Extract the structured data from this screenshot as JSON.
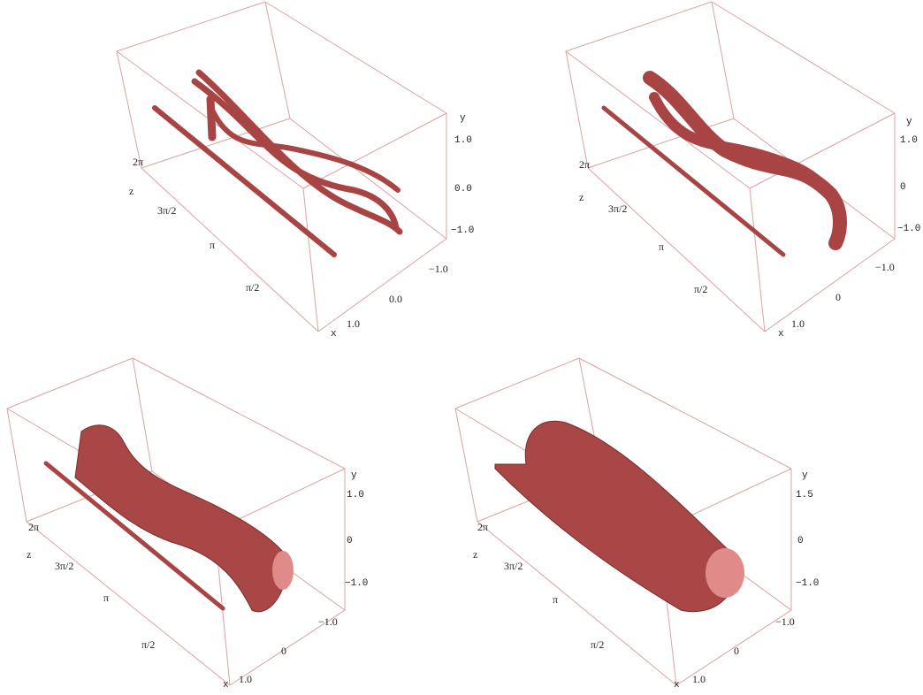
{
  "panels": [
    {
      "y_axis": {
        "label": "y",
        "ticks": [
          "1.0",
          "0.0",
          "−1.0"
        ]
      },
      "z_axis": {
        "label": "z",
        "ticks": [
          "2π",
          "3π/2",
          "π",
          "π/2"
        ]
      },
      "x_axis": {
        "label": "x",
        "ticks": [
          "−1.0",
          "0.0",
          "1.0"
        ]
      }
    },
    {
      "y_axis": {
        "label": "y",
        "ticks": [
          "1.0",
          "0",
          "−1.0"
        ]
      },
      "z_axis": {
        "label": "z",
        "ticks": [
          "2π",
          "3π/2",
          "π",
          "π/2"
        ]
      },
      "x_axis": {
        "label": "x",
        "ticks": [
          "−1.0",
          "0",
          "1.0"
        ]
      }
    },
    {
      "y_axis": {
        "label": "y",
        "ticks": [
          "1.0",
          "0",
          "−1.0"
        ]
      },
      "z_axis": {
        "label": "z",
        "ticks": [
          "2π",
          "3π/2",
          "π",
          "π/2"
        ]
      },
      "x_axis": {
        "label": "x",
        "ticks": [
          "−1.0",
          "0",
          "1.0"
        ]
      }
    },
    {
      "y_axis": {
        "label": "y",
        "ticks": [
          "1.5",
          "0",
          "−1.0"
        ]
      },
      "z_axis": {
        "label": "z",
        "ticks": [
          "2π",
          "3π/2",
          "π",
          "π/2"
        ]
      },
      "x_axis": {
        "label": "x",
        "ticks": [
          "−1.0",
          "0",
          "1.0"
        ]
      }
    }
  ]
}
